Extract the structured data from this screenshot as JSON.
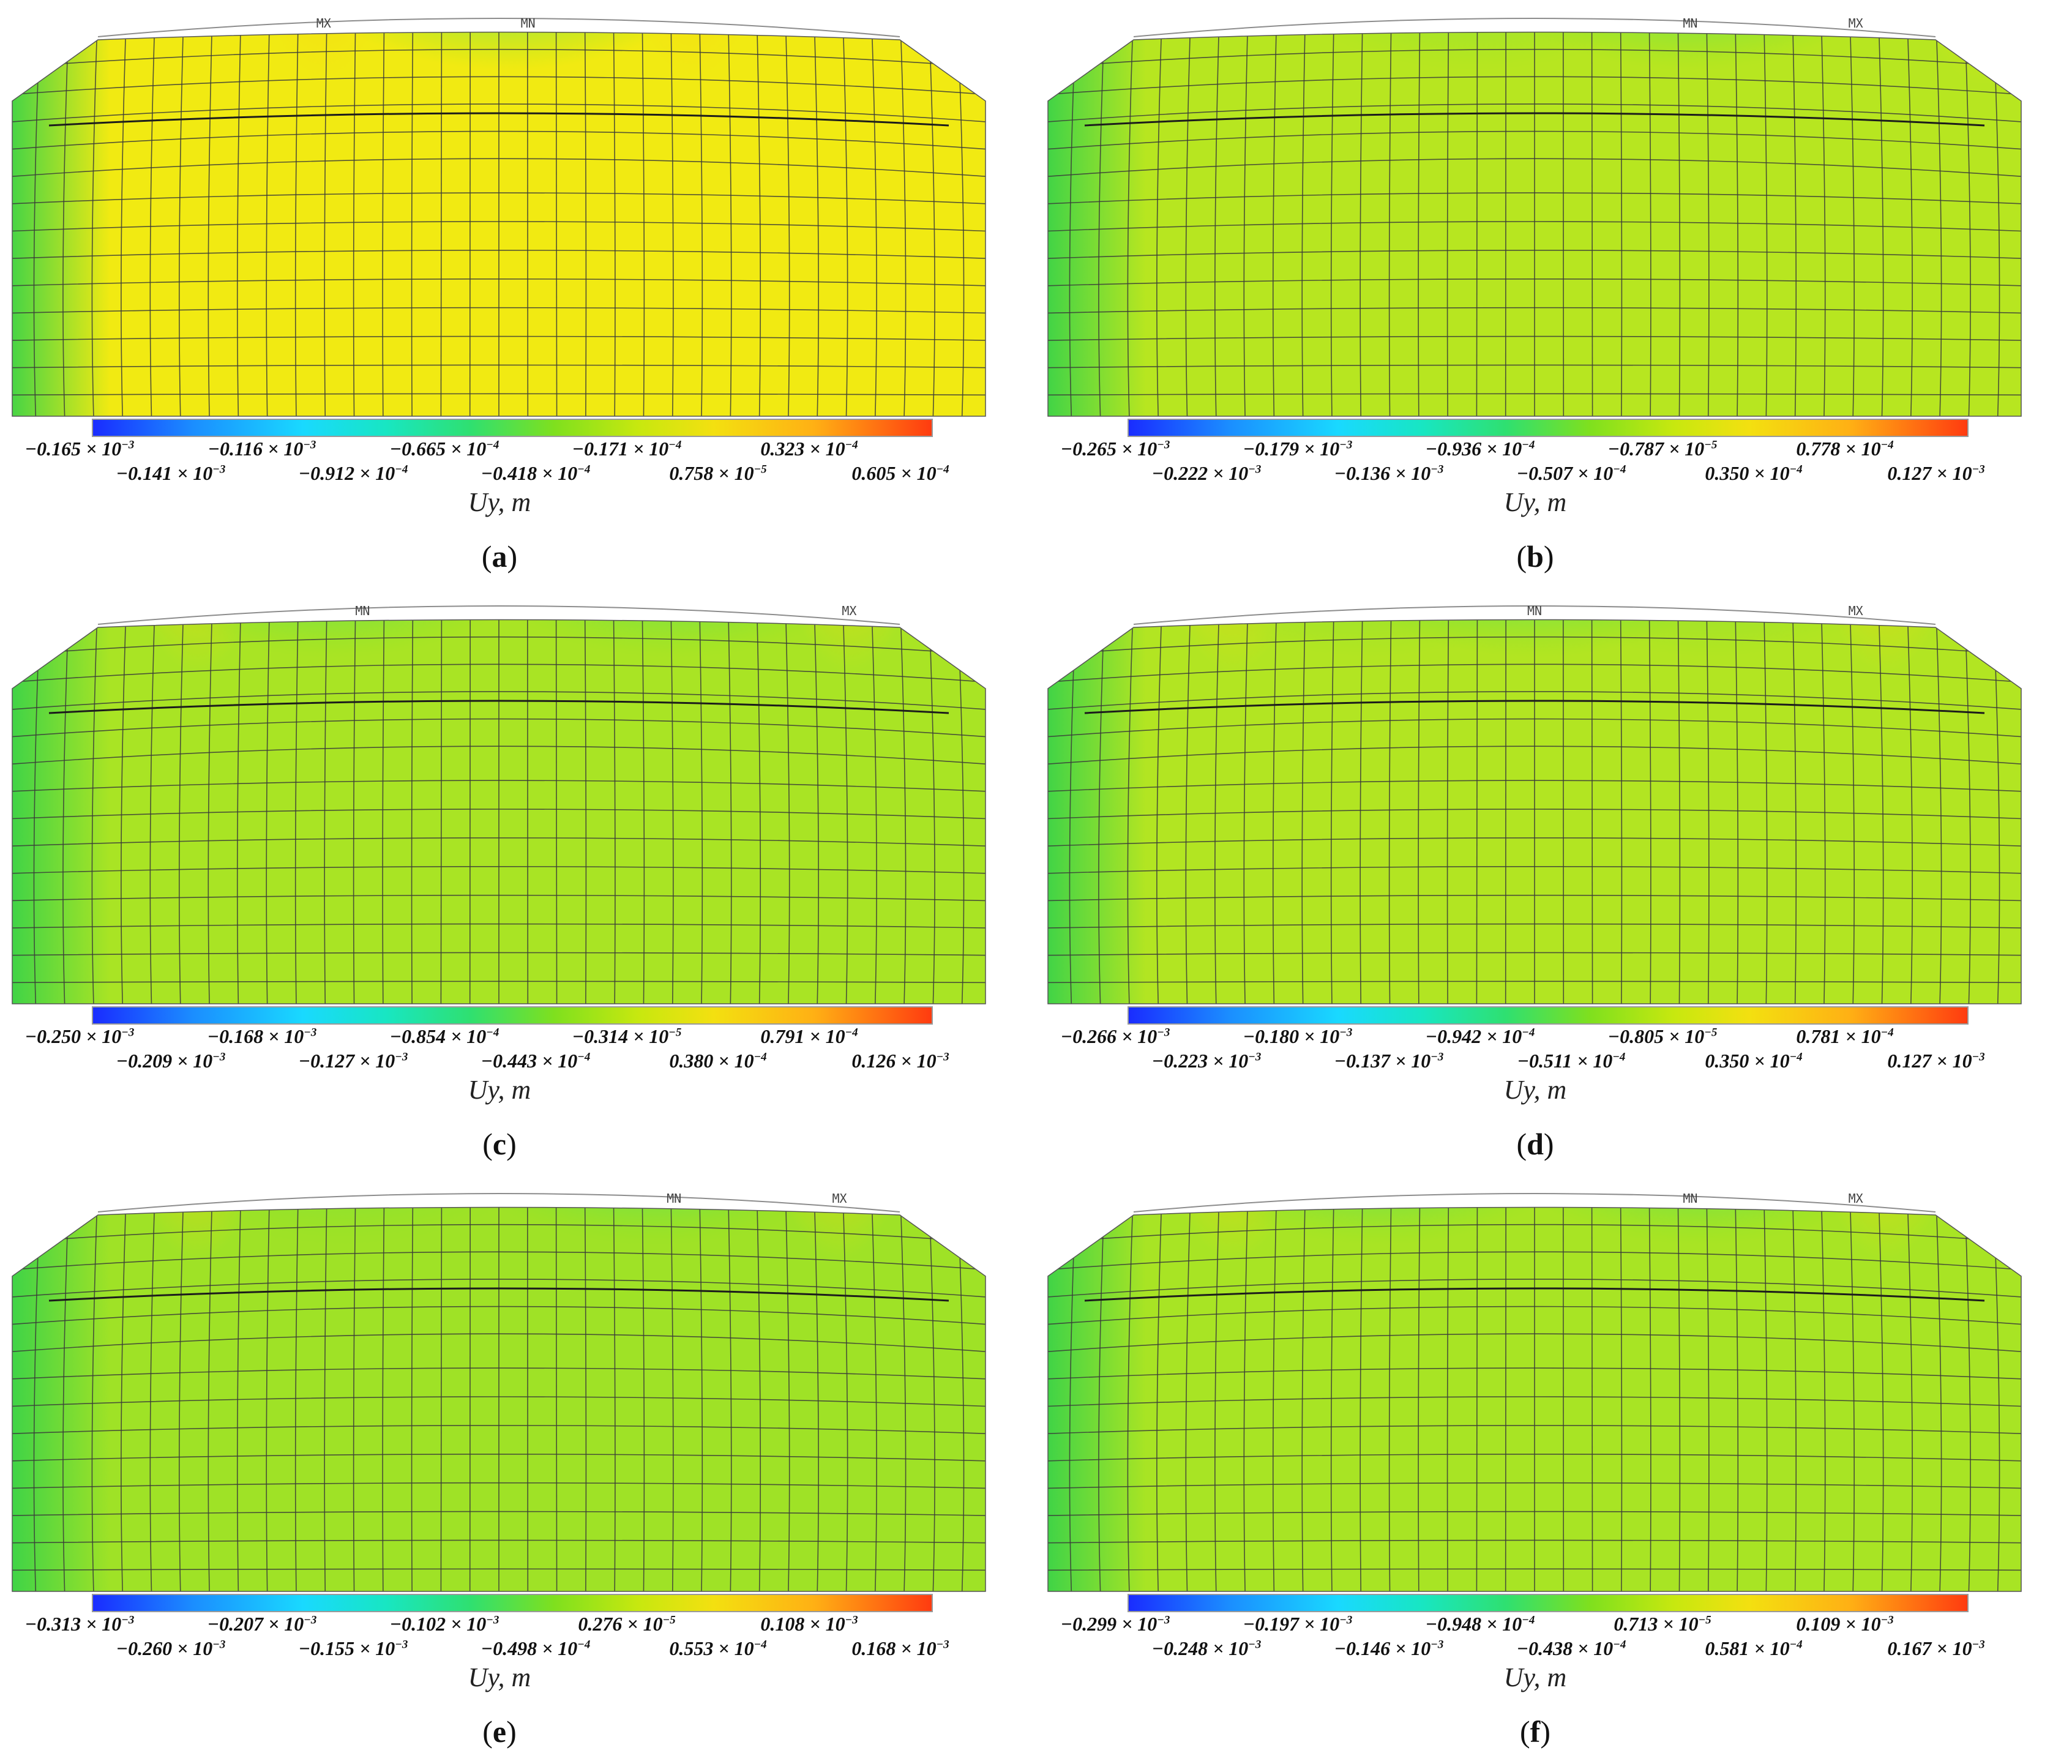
{
  "figure": {
    "axis_title": "Uy, m",
    "colors": {
      "scale": [
        "#1a2cff",
        "#1b8eff",
        "#19d9ff",
        "#18e6c2",
        "#2fe070",
        "#7fe01e",
        "#c7e80f",
        "#f3e010",
        "#ffb014",
        "#ff3b10"
      ],
      "mesh_line": "#3a3a3a",
      "frame_line": "#8c8c8c"
    },
    "marker_labels": {
      "max": "MX",
      "min": "MN"
    },
    "panels": [
      {
        "id": "a",
        "label": "a",
        "base_color": "#f1ea12",
        "hot_spots": [
          {
            "type": "max",
            "u": 0.32,
            "v": 0.0
          },
          {
            "type": "max",
            "u": 0.7,
            "v": 0.0
          },
          {
            "type": "min",
            "u": 0.51,
            "v": 0.0
          }
        ],
        "ticks_top": [
          "−0.165 × 10",
          "−0.116 × 10",
          "−0.665 × 10",
          "−0.171 × 10",
          "0.323 × 10"
        ],
        "ticks_top_exp": [
          "−3",
          "−3",
          "−4",
          "−4",
          "−4"
        ],
        "ticks_bottom": [
          "−0.141 × 10",
          "−0.912 × 10",
          "−0.418 × 10",
          "0.758 × 10",
          "0.605 × 10"
        ],
        "ticks_bottom_exp": [
          "−3",
          "−4",
          "−4",
          "−5",
          "−4"
        ],
        "markers": [
          {
            "text": "MX",
            "u": 0.32
          },
          {
            "text": "MN",
            "u": 0.53
          }
        ]
      },
      {
        "id": "b",
        "label": "b",
        "base_color": "#b7e620",
        "hot_spots": [
          {
            "type": "max",
            "u": 0.96,
            "v": 0.0
          },
          {
            "type": "min",
            "u": 0.66,
            "v": 0.0
          },
          {
            "type": "minsoft",
            "u": 0.44,
            "v": 0.0
          }
        ],
        "ticks_top": [
          "−0.265 × 10",
          "−0.179 × 10",
          "−0.936 × 10",
          "−0.787 × 10",
          "0.778 × 10"
        ],
        "ticks_top_exp": [
          "−3",
          "−3",
          "−4",
          "−5",
          "−4"
        ],
        "ticks_bottom": [
          "−0.222 × 10",
          "−0.136 × 10",
          "−0.507 × 10",
          "0.350 × 10",
          "0.127 × 10"
        ],
        "ticks_bottom_exp": [
          "−3",
          "−3",
          "−4",
          "−4",
          "−3"
        ],
        "markers": [
          {
            "text": "MN",
            "u": 0.66
          },
          {
            "text": "MX",
            "u": 0.83
          }
        ]
      },
      {
        "id": "c",
        "label": "c",
        "base_color": "#a9e424",
        "hot_spots": [
          {
            "type": "max",
            "u": 0.19,
            "v": 0.0
          },
          {
            "type": "max",
            "u": 0.86,
            "v": 0.0
          },
          {
            "type": "min",
            "u": 0.33,
            "v": 0.0
          },
          {
            "type": "min",
            "u": 0.68,
            "v": 0.0
          }
        ],
        "ticks_top": [
          "−0.250 × 10",
          "−0.168 × 10",
          "−0.854 × 10",
          "−0.314 × 10",
          "0.791 × 10"
        ],
        "ticks_top_exp": [
          "−3",
          "−3",
          "−4",
          "−5",
          "−4"
        ],
        "ticks_bottom": [
          "−0.209 × 10",
          "−0.127 × 10",
          "−0.443 × 10",
          "0.380 × 10",
          "0.126 × 10"
        ],
        "ticks_bottom_exp": [
          "−3",
          "−3",
          "−4",
          "−4",
          "−3"
        ],
        "markers": [
          {
            "text": "MN",
            "u": 0.36
          },
          {
            "text": "MX",
            "u": 0.86
          }
        ]
      },
      {
        "id": "d",
        "label": "d",
        "base_color": "#b2e522",
        "hot_spots": [
          {
            "type": "max",
            "u": 0.19,
            "v": 0.0
          },
          {
            "type": "max",
            "u": 0.86,
            "v": 0.0
          },
          {
            "type": "min",
            "u": 0.5,
            "v": 0.0
          },
          {
            "type": "minsoft",
            "u": 0.33,
            "v": 0.0
          },
          {
            "type": "minsoft",
            "u": 0.68,
            "v": 0.0
          }
        ],
        "ticks_top": [
          "−0.266 × 10",
          "−0.180 × 10",
          "−0.942 × 10",
          "−0.805 × 10",
          "0.781 × 10"
        ],
        "ticks_top_exp": [
          "−3",
          "−3",
          "−4",
          "−5",
          "−4"
        ],
        "ticks_bottom": [
          "−0.223 × 10",
          "−0.137 × 10",
          "−0.511 × 10",
          "0.350 × 10",
          "0.127 × 10"
        ],
        "ticks_bottom_exp": [
          "−3",
          "−3",
          "−4",
          "−4",
          "−3"
        ],
        "markers": [
          {
            "text": "MN",
            "u": 0.5
          },
          {
            "text": "MX",
            "u": 0.83
          }
        ]
      },
      {
        "id": "e",
        "label": "e",
        "base_color": "#9fe226",
        "hot_spots": [
          {
            "type": "max",
            "u": 0.19,
            "v": 0.0
          },
          {
            "type": "max",
            "u": 0.85,
            "v": 0.0
          },
          {
            "type": "min",
            "u": 0.66,
            "v": 0.0
          },
          {
            "type": "minsoft",
            "u": 0.34,
            "v": 0.0
          }
        ],
        "ticks_top": [
          "−0.313 × 10",
          "−0.207 × 10",
          "−0.102 × 10",
          "0.276 × 10",
          "0.108 × 10"
        ],
        "ticks_top_exp": [
          "−3",
          "−3",
          "−3",
          "−5",
          "−3"
        ],
        "ticks_bottom": [
          "−0.260 × 10",
          "−0.155 × 10",
          "−0.498 × 10",
          "0.553 × 10",
          "0.168 × 10"
        ],
        "ticks_bottom_exp": [
          "−3",
          "−3",
          "−4",
          "−4",
          "−3"
        ],
        "markers": [
          {
            "text": "MN",
            "u": 0.68
          },
          {
            "text": "MX",
            "u": 0.85
          }
        ]
      },
      {
        "id": "f",
        "label": "f",
        "base_color": "#a8e424",
        "hot_spots": [
          {
            "type": "max",
            "u": 0.19,
            "v": 0.0
          },
          {
            "type": "max",
            "u": 0.86,
            "v": 0.0
          },
          {
            "type": "min",
            "u": 0.34,
            "v": 0.0
          },
          {
            "type": "min",
            "u": 0.67,
            "v": 0.0
          }
        ],
        "ticks_top": [
          "−0.299 × 10",
          "−0.197 × 10",
          "−0.948 × 10",
          "0.713 × 10",
          "0.109 × 10"
        ],
        "ticks_top_exp": [
          "−3",
          "−3",
          "−4",
          "−5",
          "−3"
        ],
        "ticks_bottom": [
          "−0.248 × 10",
          "−0.146 × 10",
          "−0.438 × 10",
          "0.581 × 10",
          "0.167 × 10"
        ],
        "ticks_bottom_exp": [
          "−3",
          "−3",
          "−4",
          "−4",
          "−3"
        ],
        "markers": [
          {
            "text": "MN",
            "u": 0.66
          },
          {
            "text": "MX",
            "u": 0.83
          }
        ]
      }
    ]
  }
}
